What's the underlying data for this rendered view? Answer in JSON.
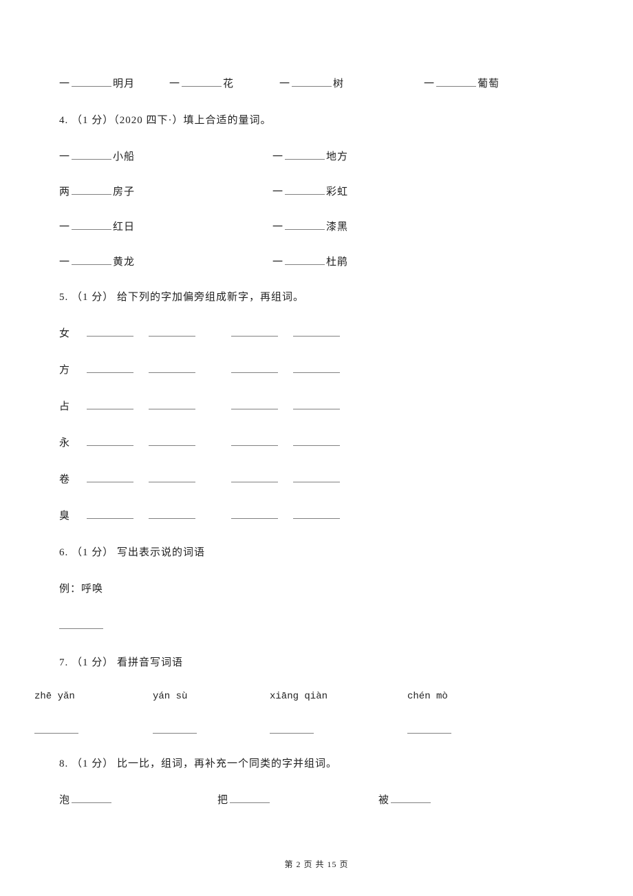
{
  "q3": {
    "items": [
      {
        "prefix": "一",
        "suffix": "明月"
      },
      {
        "prefix": "一",
        "suffix": "花"
      },
      {
        "prefix": "一",
        "suffix": "树"
      },
      {
        "prefix": "一",
        "suffix": "葡萄"
      }
    ]
  },
  "q4": {
    "header": "4. （1 分）（2020 四下·）填上合适的量词。",
    "rows": [
      {
        "left_prefix": "一",
        "left_suffix": "小船",
        "right_prefix": "一",
        "right_suffix": "地方"
      },
      {
        "left_prefix": "两",
        "left_suffix": "房子",
        "right_prefix": "一",
        "right_suffix": "彩虹"
      },
      {
        "left_prefix": "一",
        "left_suffix": "红日",
        "right_prefix": "一",
        "right_suffix": "漆黑"
      },
      {
        "left_prefix": "一",
        "left_suffix": "黄龙",
        "right_prefix": "一",
        "right_suffix": "杜鹃"
      }
    ]
  },
  "q5": {
    "header": "5. （1 分） 给下列的字加偏旁组成新字，再组词。",
    "chars": [
      "女",
      "方",
      "占",
      "永",
      "卷",
      "臭"
    ]
  },
  "q6": {
    "header": "6. （1 分） 写出表示说的词语",
    "example": "例：呼唤"
  },
  "q7": {
    "header": "7. （1 分） 看拼音写词语",
    "pinyin": [
      "zhē yǎn",
      "yán sù",
      "xiāng qiàn",
      "chén mò"
    ]
  },
  "q8": {
    "header": "8. （1 分） 比一比，组词，再补充一个同类的字并组词。",
    "chars": [
      "泡",
      "把",
      "被"
    ]
  },
  "footer": "第 2 页 共 15 页",
  "style": {
    "text_color": "#212121",
    "blank_border_color": "#808080",
    "background_color": "#ffffff",
    "body_fontsize": 15,
    "pinyin_fontsize": 14,
    "footer_fontsize": 12
  }
}
